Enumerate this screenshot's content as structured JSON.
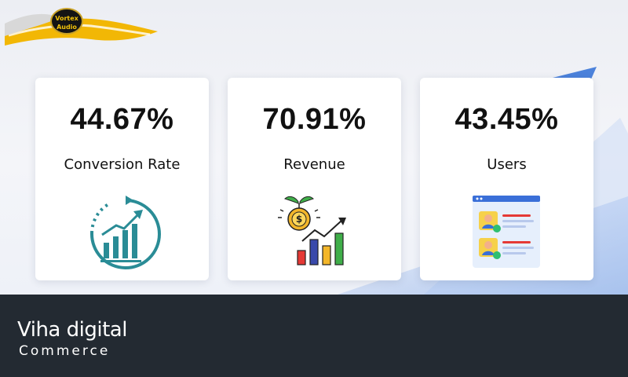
{
  "header": {
    "logo_text_line1": "Vortex",
    "logo_text_line2": "Audio"
  },
  "cards": [
    {
      "value": "44.67%",
      "label": "Conversion Rate",
      "icon": "growth-chart-icon"
    },
    {
      "value": "70.91%",
      "label": "Revenue",
      "icon": "revenue-chart-icon"
    },
    {
      "value": "43.45%",
      "label": "Users",
      "icon": "user-profiles-icon"
    }
  ],
  "footer": {
    "brand_main": "Viha digital",
    "brand_sub": "Commerce"
  },
  "colors": {
    "footer_bg": "#232a32",
    "accent_teal": "#2a8c96",
    "accent_blue": "#2f6fd6",
    "logo_yellow": "#f2c20a"
  }
}
